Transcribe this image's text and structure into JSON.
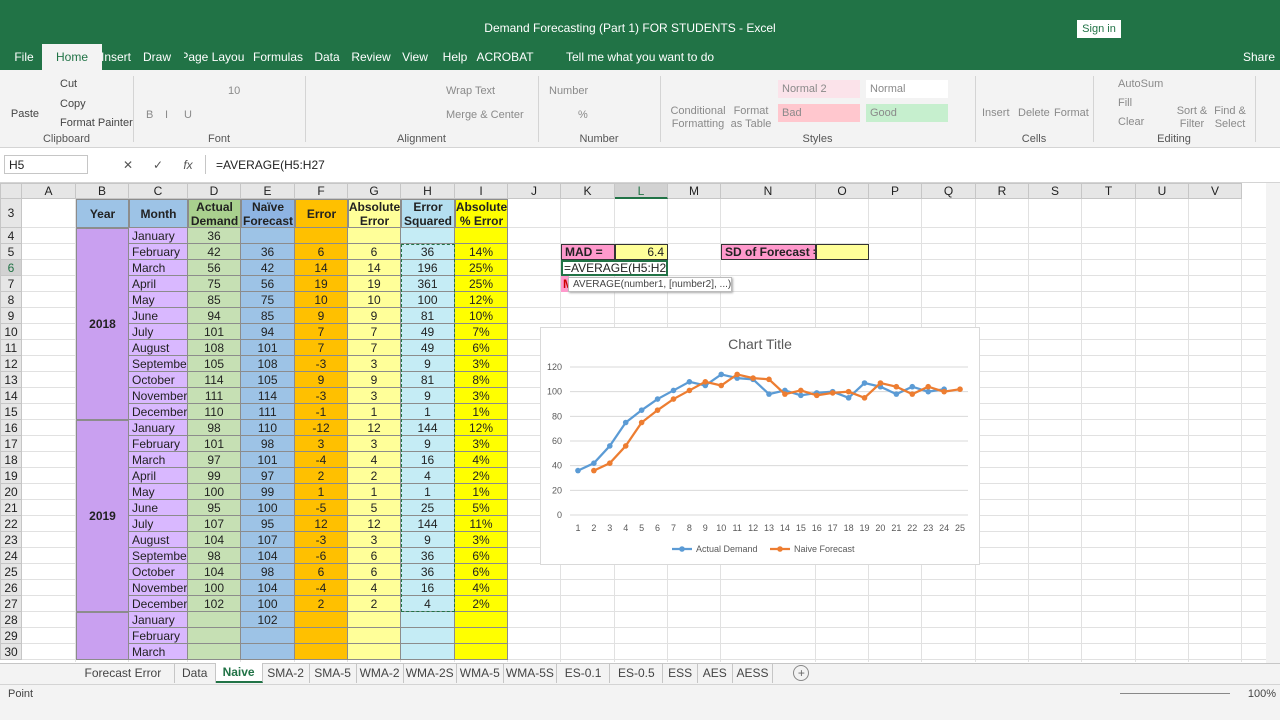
{
  "window": {
    "title": "Demand Forecasting (Part 1) FOR STUDENTS  -  Excel",
    "sign_in": "Sign in"
  },
  "menu": {
    "tabs": [
      "File",
      "Home",
      "Insert",
      "Draw",
      "Page Layout",
      "Formulas",
      "Data",
      "Review",
      "View",
      "Help",
      "ACROBAT"
    ],
    "active_tab_index": 1,
    "tell_me": "Tell me what you want to do",
    "share": "Share"
  },
  "ribbon": {
    "groups": [
      {
        "name": "Clipboard",
        "items": [
          "Paste",
          "Cut",
          "Copy",
          "Format Painter"
        ]
      },
      {
        "name": "Font",
        "items": [
          "10",
          "B",
          "I",
          "U"
        ]
      },
      {
        "name": "Alignment",
        "items": [
          "Wrap Text",
          "Merge & Center"
        ]
      },
      {
        "name": "Number",
        "items": [
          "Number",
          "%"
        ]
      },
      {
        "name": "Styles",
        "items": [
          "Conditional Formatting",
          "Format as Table",
          "Normal 2",
          "Normal",
          "Bad",
          "Good"
        ]
      },
      {
        "name": "Cells",
        "items": [
          "Insert",
          "Delete",
          "Format"
        ]
      },
      {
        "name": "Editing",
        "items": [
          "AutoSum",
          "Fill",
          "Clear",
          "Sort & Filter",
          "Find & Select"
        ]
      }
    ]
  },
  "formula_bar": {
    "name_box": "H5",
    "fx": "fx",
    "formula": "=AVERAGE(H5:H27"
  },
  "sheet": {
    "columns": [
      "A",
      "B",
      "C",
      "D",
      "E",
      "F",
      "G",
      "H",
      "I",
      "J",
      "K",
      "L",
      "M",
      "N",
      "O",
      "P",
      "Q",
      "R",
      "S",
      "T",
      "U",
      "V"
    ],
    "rows": [
      3,
      4,
      5,
      6,
      7,
      8,
      9,
      10,
      11,
      12,
      13,
      14,
      15,
      16,
      17,
      18,
      19,
      20,
      21,
      22,
      23,
      24,
      25,
      26,
      27,
      28,
      29,
      30
    ],
    "table": {
      "headers": [
        "Year",
        "Month",
        "Actual Demand",
        "Naïve Forecast",
        "Error",
        "Absolute Error",
        "Error Squared",
        "Absolute % Error"
      ],
      "groups": [
        {
          "year": "2018",
          "rows": [
            [
              "January",
              "36",
              null,
              null,
              null,
              null,
              null
            ],
            [
              "February",
              "42",
              "36",
              "6",
              "6",
              "36",
              "14%"
            ],
            [
              "March",
              "56",
              "42",
              "14",
              "14",
              "196",
              "25%"
            ],
            [
              "April",
              "75",
              "56",
              "19",
              "19",
              "361",
              "25%"
            ],
            [
              "May",
              "85",
              "75",
              "10",
              "10",
              "100",
              "12%"
            ],
            [
              "June",
              "94",
              "85",
              "9",
              "9",
              "81",
              "10%"
            ],
            [
              "July",
              "101",
              "94",
              "7",
              "7",
              "49",
              "7%"
            ],
            [
              "August",
              "108",
              "101",
              "7",
              "7",
              "49",
              "6%"
            ],
            [
              "September",
              "105",
              "108",
              "-3",
              "3",
              "9",
              "3%"
            ],
            [
              "October",
              "114",
              "105",
              "9",
              "9",
              "81",
              "8%"
            ],
            [
              "November",
              "111",
              "114",
              "-3",
              "3",
              "9",
              "3%"
            ],
            [
              "December",
              "110",
              "111",
              "-1",
              "1",
              "1",
              "1%"
            ]
          ]
        },
        {
          "year": "2019",
          "rows": [
            [
              "January",
              "98",
              "110",
              "-12",
              "12",
              "144",
              "12%"
            ],
            [
              "February",
              "101",
              "98",
              "3",
              "3",
              "9",
              "3%"
            ],
            [
              "March",
              "97",
              "101",
              "-4",
              "4",
              "16",
              "4%"
            ],
            [
              "April",
              "99",
              "97",
              "2",
              "2",
              "4",
              "2%"
            ],
            [
              "May",
              "100",
              "99",
              "1",
              "1",
              "1",
              "1%"
            ],
            [
              "June",
              "95",
              "100",
              "-5",
              "5",
              "25",
              "5%"
            ],
            [
              "July",
              "107",
              "95",
              "12",
              "12",
              "144",
              "11%"
            ],
            [
              "August",
              "104",
              "107",
              "-3",
              "3",
              "9",
              "3%"
            ],
            [
              "September",
              "98",
              "104",
              "-6",
              "6",
              "36",
              "6%"
            ],
            [
              "October",
              "104",
              "98",
              "6",
              "6",
              "36",
              "6%"
            ],
            [
              "November",
              "100",
              "104",
              "-4",
              "4",
              "16",
              "4%"
            ],
            [
              "December",
              "102",
              "100",
              "2",
              "2",
              "4",
              "2%"
            ]
          ]
        },
        {
          "year": null,
          "rows": [
            [
              "January",
              null,
              "102",
              null,
              null,
              null,
              null
            ],
            [
              "February",
              null,
              null,
              null,
              null,
              null,
              null
            ],
            [
              "March",
              null,
              null,
              null,
              null,
              null,
              null
            ]
          ]
        }
      ]
    },
    "mad_label": "MAD =",
    "mad_value": "6.4",
    "sd_label": "SD of Forecast =",
    "editing_cell": "=AVERAGE(H5:H27",
    "partial_label": "M",
    "tooltip": "AVERAGE(number1, [number2], ...)"
  },
  "chart_data": {
    "type": "line",
    "title": "Chart Title",
    "x": [
      1,
      2,
      3,
      4,
      5,
      6,
      7,
      8,
      9,
      10,
      11,
      12,
      13,
      14,
      15,
      16,
      17,
      18,
      19,
      20,
      21,
      22,
      23,
      24,
      25
    ],
    "xlim": [
      0.5,
      25.5
    ],
    "series": [
      {
        "name": "Actual Demand",
        "color": "#5b9bd5",
        "values": [
          36,
          42,
          56,
          75,
          85,
          94,
          101,
          108,
          105,
          114,
          111,
          110,
          98,
          101,
          97,
          99,
          100,
          95,
          107,
          104,
          98,
          104,
          100,
          102,
          null
        ]
      },
      {
        "name": "Naive Forecast",
        "color": "#ed7d31",
        "values": [
          null,
          36,
          42,
          56,
          75,
          85,
          94,
          101,
          108,
          105,
          114,
          111,
          110,
          98,
          101,
          97,
          99,
          100,
          95,
          107,
          104,
          98,
          104,
          100,
          102
        ]
      }
    ],
    "ylim": [
      0,
      120
    ],
    "yticks": [
      0,
      20,
      40,
      60,
      80,
      100,
      120
    ],
    "grid": true,
    "legend": "bottom"
  },
  "sheet_tabs": {
    "names": [
      "Forecast Error",
      "Data",
      "Naive",
      "SMA-2",
      "SMA-5",
      "WMA-2",
      "WMA-2S",
      "WMA-5",
      "WMA-5S",
      "ES-0.1",
      "ES-0.5",
      "ESS",
      "AES",
      "AESS"
    ],
    "active_index": 2
  },
  "status": {
    "mode": "Point",
    "zoom": "100%"
  }
}
